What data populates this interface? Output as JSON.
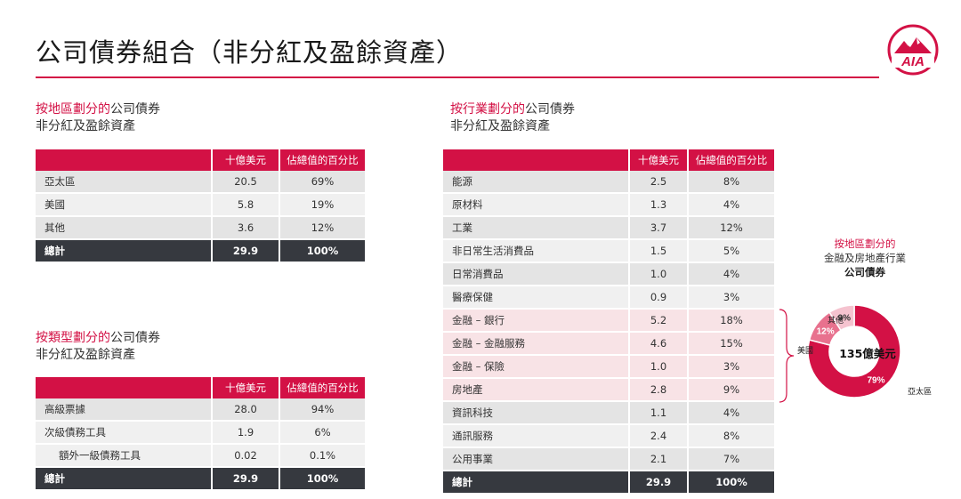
{
  "title": "公司債券組合（非分紅及盈餘資產）",
  "region": {
    "title_red": "按地區劃分的",
    "title_dark": "公司債券",
    "subtitle": "非分紅及盈餘資產",
    "headers": [
      "十億美元",
      "佔總值的百分比"
    ],
    "rows": [
      {
        "name": "亞太區",
        "value": "20.5",
        "pct": "69%"
      },
      {
        "name": "美國",
        "value": "5.8",
        "pct": "19%"
      },
      {
        "name": "其他",
        "value": "3.6",
        "pct": "12%"
      }
    ],
    "total": {
      "name": "總計",
      "value": "29.9",
      "pct": "100%"
    }
  },
  "type": {
    "title_red": "按類型劃分的",
    "title_dark": "公司債券",
    "subtitle": "非分紅及盈餘資產",
    "headers": [
      "十億美元",
      "佔總值的百分比"
    ],
    "rows": [
      {
        "name": "高級票據",
        "value": "28.0",
        "pct": "94%"
      },
      {
        "name": "次級債務工具",
        "value": "1.9",
        "pct": "6%"
      },
      {
        "name": "額外一級債務工具",
        "value": "0.02",
        "pct": "0.1%"
      }
    ],
    "total": {
      "name": "總計",
      "value": "29.9",
      "pct": "100%"
    }
  },
  "industry": {
    "title_red": "按行業劃分的",
    "title_dark": "公司債券",
    "subtitle": "非分紅及盈餘資產",
    "headers": [
      "十億美元",
      "佔總值的百分比"
    ],
    "rows": [
      {
        "name": "能源",
        "value": "2.5",
        "pct": "8%"
      },
      {
        "name": "原材料",
        "value": "1.3",
        "pct": "4%"
      },
      {
        "name": "工業",
        "value": "3.7",
        "pct": "12%"
      },
      {
        "name": "非日常生活消費品",
        "value": "1.5",
        "pct": "5%"
      },
      {
        "name": "日常消費品",
        "value": "1.0",
        "pct": "4%"
      },
      {
        "name": "醫療保健",
        "value": "0.9",
        "pct": "3%"
      },
      {
        "name": "金融 – 銀行",
        "value": "5.2",
        "pct": "18%"
      },
      {
        "name": "金融 – 金融服務",
        "value": "4.6",
        "pct": "15%"
      },
      {
        "name": "金融 – 保險",
        "value": "1.0",
        "pct": "3%"
      },
      {
        "name": "房地產",
        "value": "2.8",
        "pct": "9%"
      },
      {
        "name": "資訊科技",
        "value": "1.1",
        "pct": "4%"
      },
      {
        "name": "通訊服務",
        "value": "2.4",
        "pct": "8%"
      },
      {
        "name": "公用事業",
        "value": "2.1",
        "pct": "7%"
      }
    ],
    "total": {
      "name": "總計",
      "value": "29.9",
      "pct": "100%"
    }
  },
  "chart_data": {
    "type": "pie",
    "title_red": "按地區劃分的",
    "title_line2": "金融及房地產行業",
    "title_bold": "公司債券",
    "center_label": "135億美元",
    "slices": [
      {
        "name": "亞太區",
        "value": 79,
        "label": "79%",
        "color": "#d31145"
      },
      {
        "name": "美國",
        "value": 12,
        "label": "12%",
        "color": "#e8718e"
      },
      {
        "name": "其他",
        "value": 9,
        "label": "9%",
        "color": "#f5c3cf"
      }
    ]
  },
  "colors": {
    "accent": "#d31145",
    "total_row": "#36393f"
  }
}
